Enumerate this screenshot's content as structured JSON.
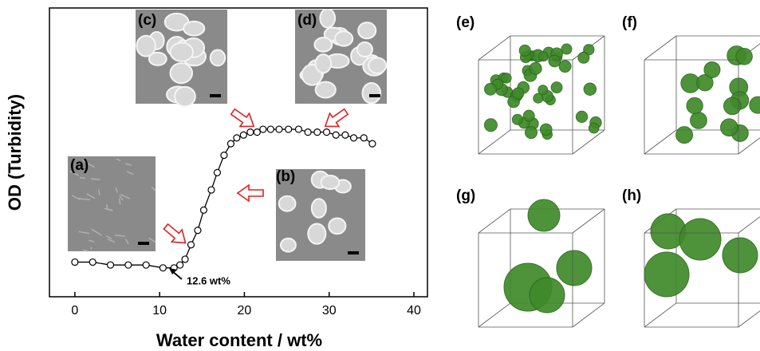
{
  "chart_data": {
    "type": "line",
    "x_label": "Water content / wt%",
    "y_label": "OD (Turbidity)",
    "x": [
      0,
      2.1,
      4.2,
      6.3,
      8.4,
      10.4,
      11.7,
      12.4,
      13.0,
      13.7,
      14.5,
      15.2,
      16.1,
      16.8,
      17.6,
      18.4,
      19.1,
      19.9,
      20.7,
      21.5,
      22.2,
      23.1,
      24.1,
      25.2,
      26.4,
      27.5,
      28.6,
      29.7,
      30.8,
      31.9,
      32.9,
      34.1,
      35.1
    ],
    "values": [
      0.12,
      0.12,
      0.11,
      0.11,
      0.11,
      0.1,
      0.1,
      0.11,
      0.13,
      0.18,
      0.23,
      0.3,
      0.37,
      0.43,
      0.49,
      0.53,
      0.55,
      0.56,
      0.57,
      0.57,
      0.58,
      0.58,
      0.58,
      0.58,
      0.58,
      0.57,
      0.57,
      0.57,
      0.56,
      0.56,
      0.55,
      0.55,
      0.53
    ],
    "color": "#000000",
    "xlim": [
      -3,
      41.6
    ],
    "ylim": [
      0,
      1
    ],
    "xticks": [
      0,
      10,
      20,
      30,
      40
    ],
    "annotation": "12.6 wt%",
    "insets": [
      "(a)",
      "(b)",
      "(c)",
      "(d)"
    ],
    "panels": [
      "(e)",
      "(f)",
      "(g)",
      "(h)"
    ]
  }
}
